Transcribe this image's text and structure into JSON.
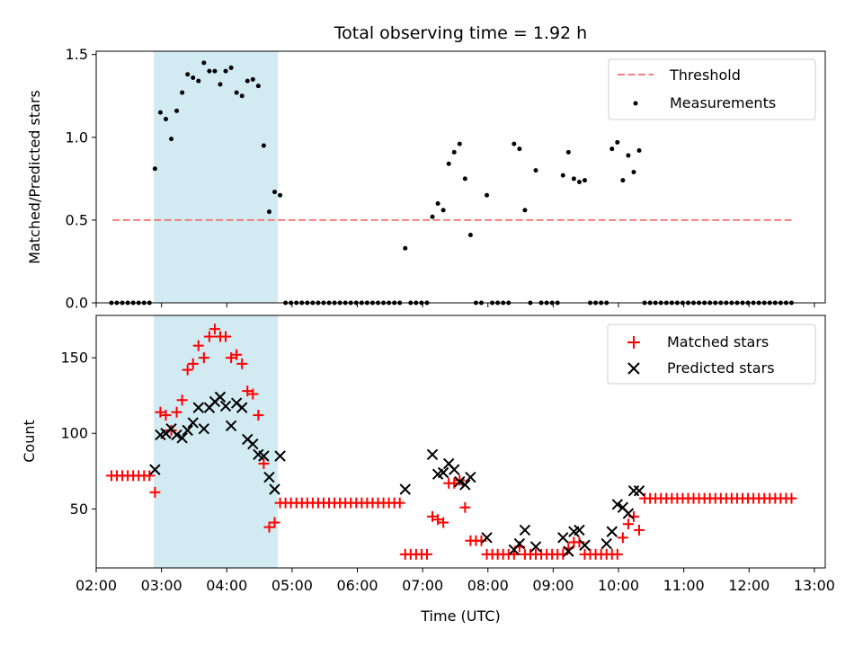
{
  "chart_data": [
    {
      "type": "scatter",
      "title": "Total observing time = 1.92 h",
      "xlabel": "",
      "ylabel": "Matched/Predicted stars",
      "xlim": [
        "02:00",
        "13:10"
      ],
      "ylim": [
        0,
        1.52
      ],
      "yticks": [
        "0.0",
        "0.5",
        "1.0",
        "1.5"
      ],
      "grid": false,
      "legend": "top-right",
      "colors": {
        "threshold": "#f08080",
        "measurements": "#000000",
        "span": "#add8e6"
      },
      "shaded_span": {
        "start": "02:53",
        "end": "04:47"
      },
      "series": [
        {
          "name": "Threshold",
          "style": "dashed-line",
          "x": [
            "02:15",
            "12:40"
          ],
          "y": [
            0.5,
            0.5
          ]
        },
        {
          "name": "Measurements",
          "style": "dots",
          "x": [
            "02:14",
            "02:19",
            "02:24",
            "02:29",
            "02:34",
            "02:39",
            "02:44",
            "02:49",
            "02:54",
            "02:59",
            "03:04",
            "03:09",
            "03:14",
            "03:19",
            "03:24",
            "03:29",
            "03:34",
            "03:39",
            "03:44",
            "03:49",
            "03:54",
            "03:59",
            "04:04",
            "04:09",
            "04:14",
            "04:19",
            "04:24",
            "04:29",
            "04:34",
            "04:39",
            "04:44",
            "04:49",
            "04:54",
            "04:59",
            "05:04",
            "05:09",
            "05:14",
            "05:19",
            "05:24",
            "05:29",
            "05:34",
            "05:39",
            "05:44",
            "05:49",
            "05:54",
            "05:59",
            "06:04",
            "06:09",
            "06:14",
            "06:19",
            "06:24",
            "06:29",
            "06:34",
            "06:39",
            "06:44",
            "06:49",
            "06:54",
            "06:59",
            "07:04",
            "07:09",
            "07:14",
            "07:19",
            "07:24",
            "07:29",
            "07:34",
            "07:39",
            "07:44",
            "07:49",
            "07:54",
            "07:59",
            "08:04",
            "08:09",
            "08:14",
            "08:19",
            "08:24",
            "08:29",
            "08:34",
            "08:39",
            "08:44",
            "08:49",
            "08:54",
            "08:59",
            "09:04",
            "09:09",
            "09:14",
            "09:19",
            "09:24",
            "09:29",
            "09:34",
            "09:39",
            "09:44",
            "09:49",
            "09:54",
            "09:59",
            "10:04",
            "10:09",
            "10:14",
            "10:19",
            "10:24",
            "10:29",
            "10:34",
            "10:39",
            "10:44",
            "10:49",
            "10:54",
            "10:59",
            "11:04",
            "11:09",
            "11:14",
            "11:19",
            "11:24",
            "11:29",
            "11:34",
            "11:39",
            "11:44",
            "11:49",
            "11:54",
            "11:59",
            "12:04",
            "12:09",
            "12:14",
            "12:19",
            "12:24",
            "12:29",
            "12:34",
            "12:39"
          ],
          "y": [
            0,
            0,
            0,
            0,
            0,
            0,
            0,
            0,
            0.81,
            1.15,
            1.11,
            0.99,
            1.16,
            1.27,
            1.38,
            1.36,
            1.34,
            1.45,
            1.4,
            1.4,
            1.32,
            1.4,
            1.42,
            1.27,
            1.25,
            1.34,
            1.35,
            1.31,
            0.95,
            0.55,
            0.67,
            0.65,
            0,
            0,
            0,
            0,
            0,
            0,
            0,
            0,
            0,
            0,
            0,
            0,
            0,
            0,
            0,
            0,
            0,
            0,
            0,
            0,
            0,
            0,
            0.33,
            0,
            0,
            0,
            0,
            0.52,
            0.6,
            0.56,
            0.84,
            0.91,
            0.96,
            0.75,
            0.41,
            0,
            0,
            0.65,
            0,
            0,
            0,
            0,
            0.96,
            0.93,
            0.56,
            0,
            0.8,
            0,
            0,
            0,
            0,
            0.77,
            0.91,
            0.75,
            0.73,
            0.74,
            0,
            0,
            0,
            0,
            0.93,
            0.97,
            0.74,
            0.89,
            0.79,
            0.92,
            0,
            0,
            0,
            0,
            0,
            0,
            0,
            0,
            0,
            0,
            0,
            0,
            0,
            0,
            0,
            0,
            0,
            0,
            0,
            0,
            0,
            0,
            0,
            0,
            0,
            0,
            0,
            0
          ]
        }
      ]
    },
    {
      "type": "scatter",
      "title": "",
      "xlabel": "Time (UTC)",
      "ylabel": "Count",
      "xlim": [
        "02:00",
        "13:10"
      ],
      "ylim": [
        11,
        178
      ],
      "yticks": [
        "50",
        "100",
        "150"
      ],
      "xticks": [
        "02:00",
        "03:00",
        "04:00",
        "05:00",
        "06:00",
        "07:00",
        "08:00",
        "09:00",
        "10:00",
        "11:00",
        "12:00",
        "13:00"
      ],
      "grid": false,
      "legend": "top-right",
      "colors": {
        "matched": "#ff0000",
        "predicted": "#000000",
        "span": "#add8e6"
      },
      "shaded_span": {
        "start": "02:53",
        "end": "04:47"
      },
      "series": [
        {
          "name": "Matched stars",
          "marker": "+",
          "x": [
            "02:14",
            "02:19",
            "02:24",
            "02:29",
            "02:34",
            "02:39",
            "02:44",
            "02:49",
            "02:54",
            "02:59",
            "03:04",
            "03:09",
            "03:14",
            "03:19",
            "03:24",
            "03:29",
            "03:34",
            "03:39",
            "03:44",
            "03:49",
            "03:54",
            "03:59",
            "04:04",
            "04:09",
            "04:14",
            "04:19",
            "04:24",
            "04:29",
            "04:34",
            "04:39",
            "04:44",
            "04:49",
            "04:54",
            "04:59",
            "05:04",
            "05:09",
            "05:14",
            "05:19",
            "05:24",
            "05:29",
            "05:34",
            "05:39",
            "05:44",
            "05:49",
            "05:54",
            "05:59",
            "06:04",
            "06:09",
            "06:14",
            "06:19",
            "06:24",
            "06:29",
            "06:34",
            "06:39",
            "06:44",
            "06:49",
            "06:54",
            "06:59",
            "07:04",
            "07:09",
            "07:14",
            "07:19",
            "07:24",
            "07:29",
            "07:34",
            "07:39",
            "07:44",
            "07:49",
            "07:54",
            "07:59",
            "08:04",
            "08:09",
            "08:14",
            "08:19",
            "08:24",
            "08:29",
            "08:34",
            "08:39",
            "08:44",
            "08:49",
            "08:54",
            "08:59",
            "09:04",
            "09:09",
            "09:14",
            "09:19",
            "09:24",
            "09:29",
            "09:34",
            "09:39",
            "09:44",
            "09:49",
            "09:54",
            "09:59",
            "10:04",
            "10:09",
            "10:14",
            "10:19",
            "10:24",
            "10:29",
            "10:34",
            "10:39",
            "10:44",
            "10:49",
            "10:54",
            "10:59",
            "11:04",
            "11:09",
            "11:14",
            "11:19",
            "11:24",
            "11:29",
            "11:34",
            "11:39",
            "11:44",
            "11:49",
            "11:54",
            "11:59",
            "12:04",
            "12:09",
            "12:14",
            "12:19",
            "12:24",
            "12:29",
            "12:34",
            "12:39"
          ],
          "y": [
            72,
            72,
            72,
            72,
            72,
            72,
            72,
            72,
            61,
            114,
            112,
            102,
            114,
            122,
            142,
            146,
            158,
            150,
            164,
            169,
            164,
            164,
            150,
            152,
            146,
            128,
            126,
            112,
            80,
            38,
            41,
            54,
            54,
            54,
            54,
            54,
            54,
            54,
            54,
            54,
            54,
            54,
            54,
            54,
            54,
            54,
            54,
            54,
            54,
            54,
            54,
            54,
            54,
            54,
            20,
            20,
            20,
            20,
            20,
            45,
            43,
            41,
            67,
            67,
            69,
            51,
            29,
            29,
            29,
            20,
            20,
            20,
            20,
            20,
            20,
            25,
            20,
            20,
            20,
            20,
            20,
            20,
            20,
            20,
            24,
            28,
            28,
            20,
            20,
            20,
            20,
            20,
            20,
            20,
            31,
            40,
            45,
            36,
            57,
            57,
            57,
            57,
            57,
            57,
            57,
            57,
            57,
            57,
            57,
            57,
            57,
            57,
            57,
            57,
            57,
            57,
            57,
            57,
            57,
            57,
            57,
            57,
            57,
            57,
            57,
            57
          ]
        },
        {
          "name": "Predicted stars",
          "marker": "x",
          "x": [
            "02:54",
            "02:59",
            "03:04",
            "03:09",
            "03:14",
            "03:19",
            "03:24",
            "03:29",
            "03:34",
            "03:39",
            "03:44",
            "03:49",
            "03:54",
            "03:59",
            "04:04",
            "04:09",
            "04:14",
            "04:19",
            "04:24",
            "04:29",
            "04:34",
            "04:39",
            "04:44",
            "04:49",
            "06:44",
            "07:09",
            "07:14",
            "07:19",
            "07:24",
            "07:29",
            "07:34",
            "07:39",
            "07:44",
            "07:59",
            "08:24",
            "08:29",
            "08:34",
            "08:44",
            "09:09",
            "09:14",
            "09:19",
            "09:24",
            "09:29",
            "09:49",
            "09:54",
            "09:59",
            "10:04",
            "10:09",
            "10:14",
            "10:19"
          ],
          "y": [
            76,
            99,
            100,
            103,
            99,
            97,
            102,
            107,
            117,
            103,
            117,
            121,
            124,
            118,
            105,
            120,
            117,
            96,
            93,
            86,
            85,
            71,
            63,
            85,
            63,
            86,
            73,
            74,
            80,
            76,
            68,
            66,
            71,
            31,
            23,
            27,
            36,
            25,
            31,
            22,
            35,
            36,
            26,
            27,
            35,
            53,
            51,
            47,
            62,
            62
          ]
        }
      ]
    }
  ]
}
